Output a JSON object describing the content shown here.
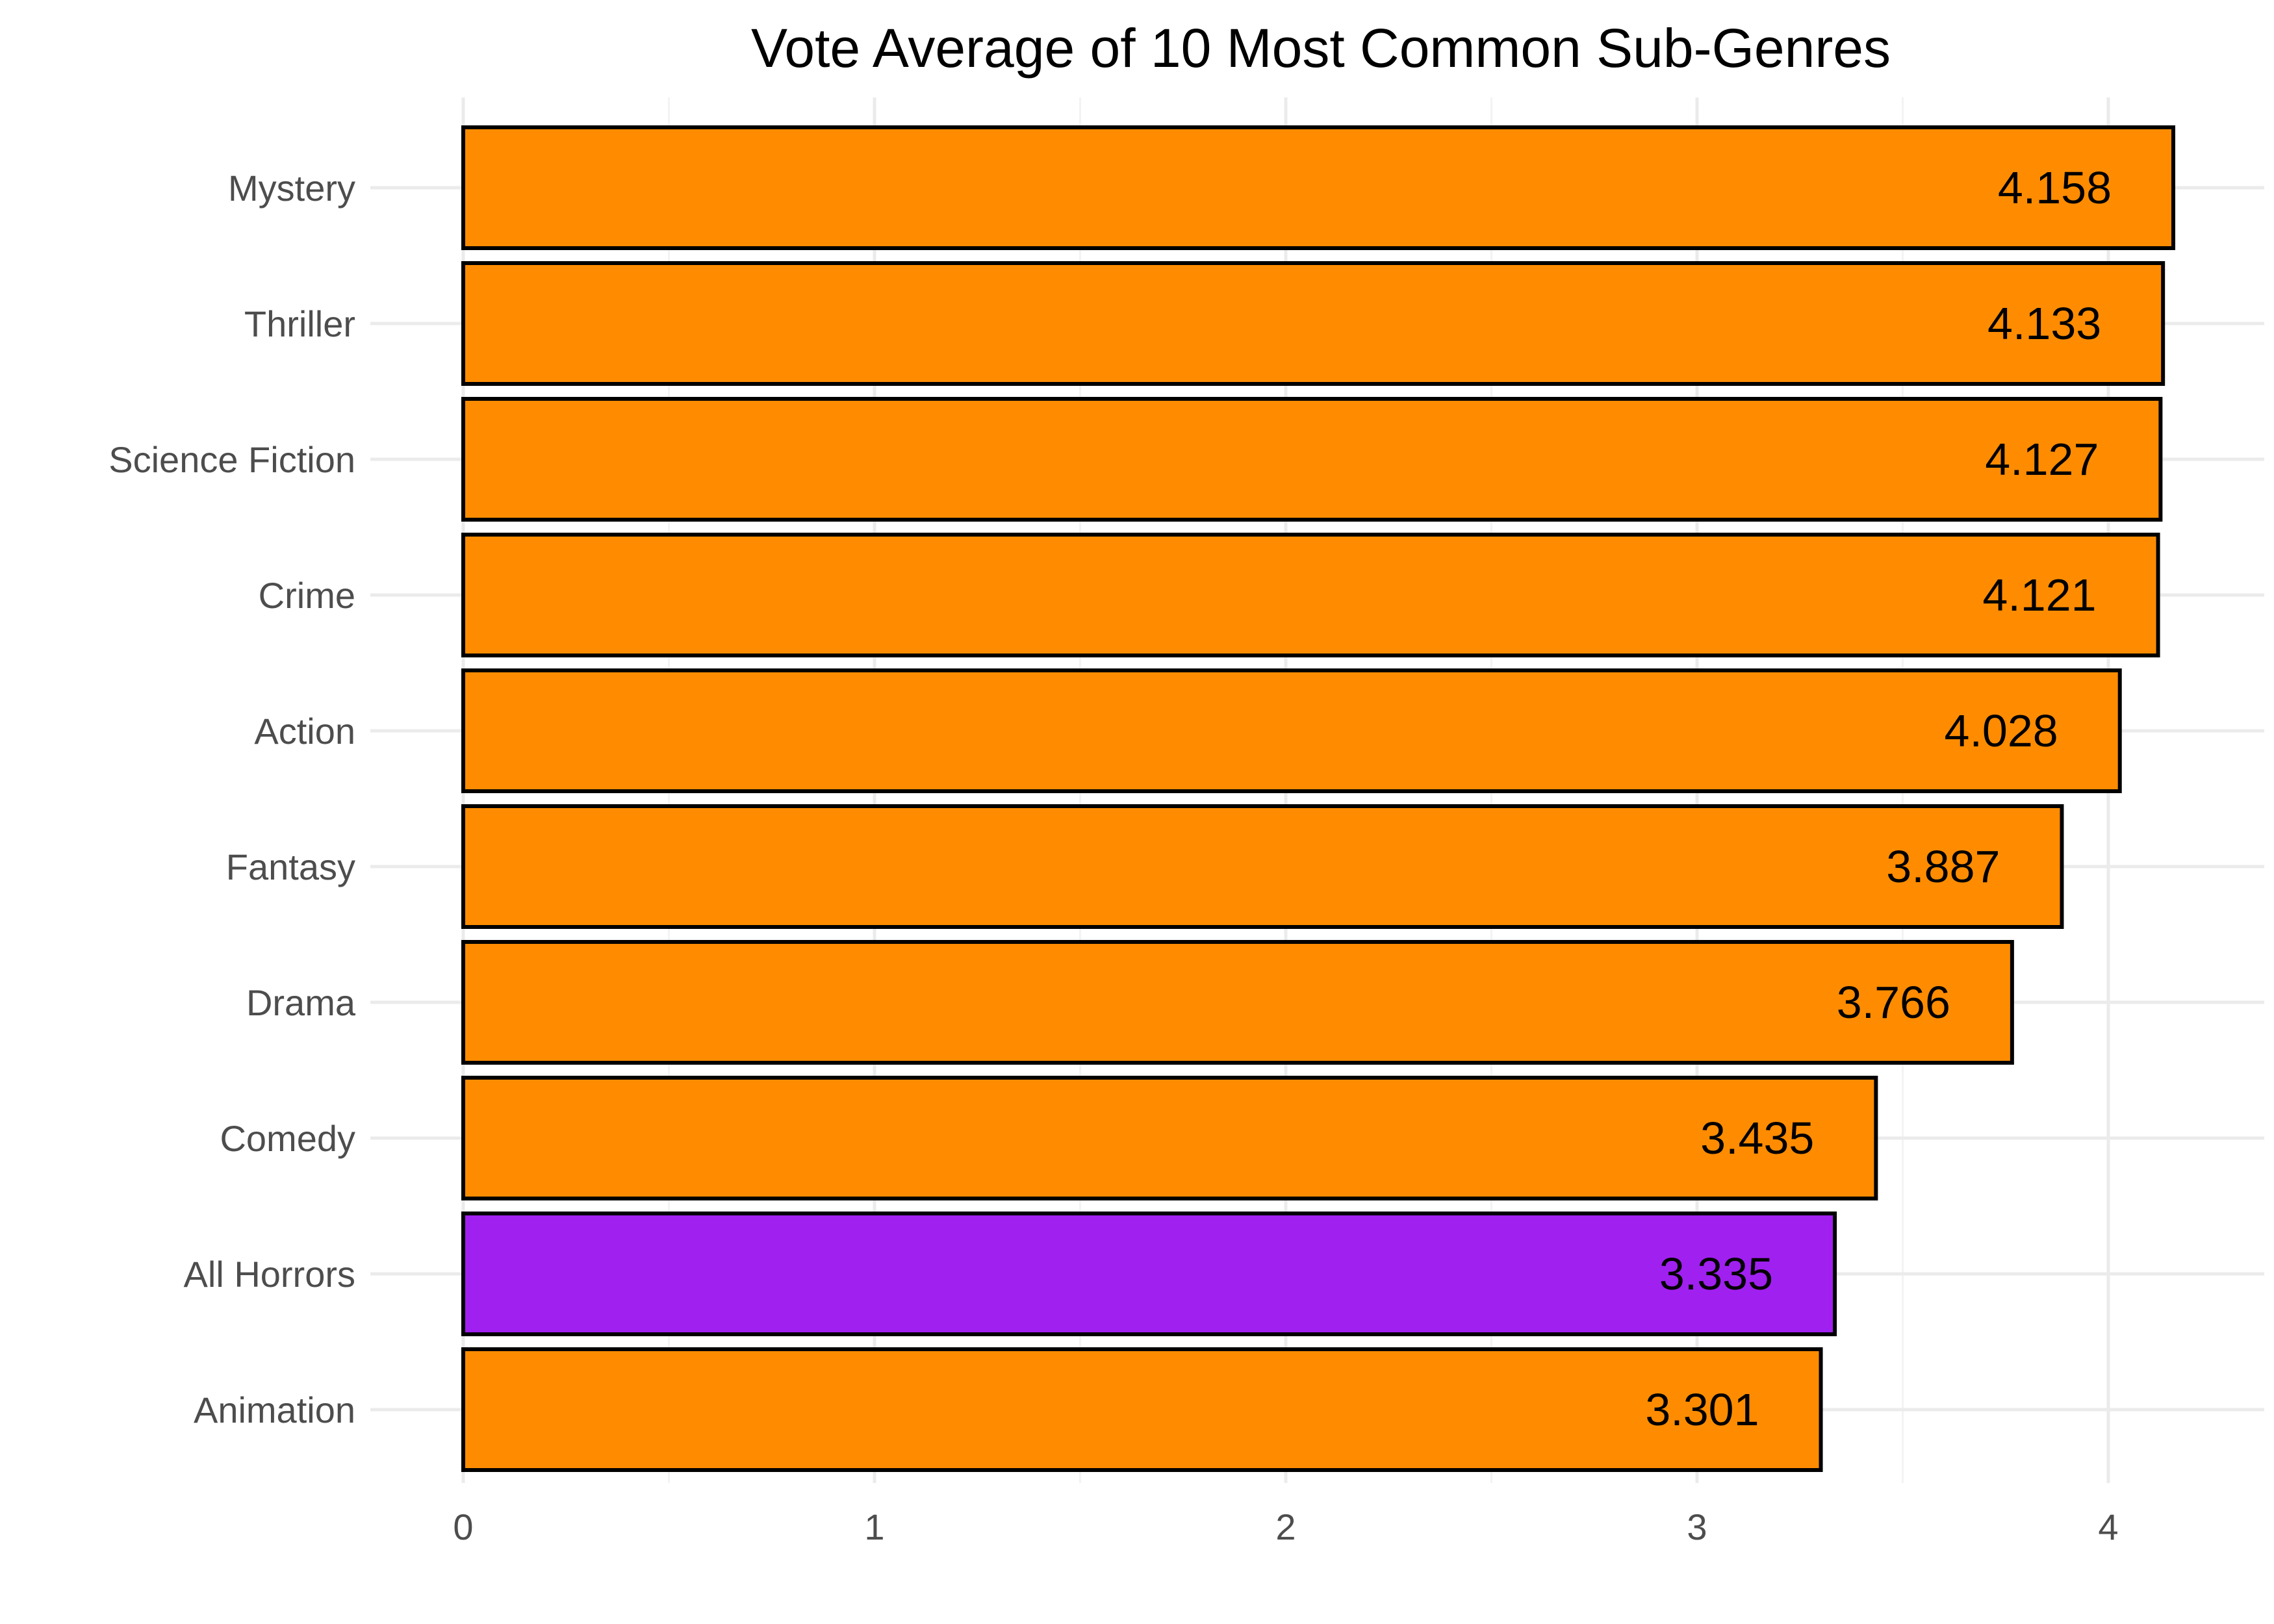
{
  "chart_data": {
    "type": "bar",
    "orientation": "horizontal",
    "title": "Vote Average of 10 Most Common Sub-Genres",
    "xlabel": "",
    "ylabel": "",
    "categories": [
      "Mystery",
      "Thriller",
      "Science Fiction",
      "Crime",
      "Action",
      "Fantasy",
      "Drama",
      "Comedy",
      "All Horrors",
      "Animation"
    ],
    "values": [
      4.158,
      4.133,
      4.127,
      4.121,
      4.028,
      3.887,
      3.766,
      3.435,
      3.335,
      3.301
    ],
    "value_labels": [
      "4.158",
      "4.133",
      "4.127",
      "4.121",
      "4.028",
      "3.887",
      "3.766",
      "3.435",
      "3.335",
      "3.301"
    ],
    "bar_colors": [
      "#ff8c00",
      "#ff8c00",
      "#ff8c00",
      "#ff8c00",
      "#ff8c00",
      "#ff8c00",
      "#ff8c00",
      "#ff8c00",
      "#a020f0",
      "#ff8c00"
    ],
    "bar_outline_color": "#000000",
    "xlim": [
      0,
      4.4
    ],
    "xticks": [
      0,
      1,
      2,
      3,
      4
    ],
    "xtick_labels": [
      "0",
      "1",
      "2",
      "3",
      "4"
    ],
    "grid": true,
    "legend": "none"
  }
}
